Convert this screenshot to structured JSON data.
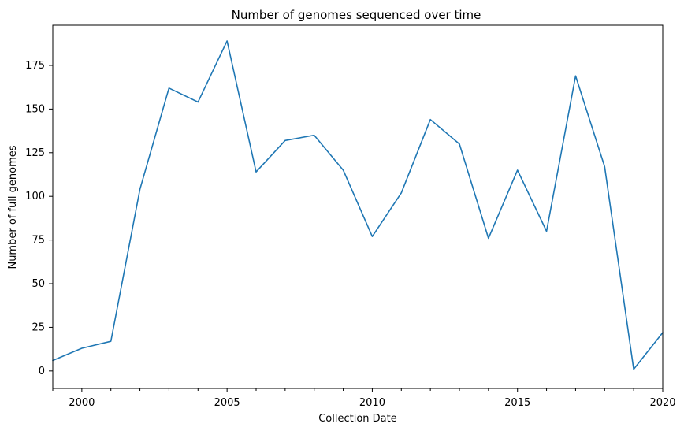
{
  "chart_data": {
    "type": "line",
    "title": "Number of genomes sequenced over time",
    "xlabel": "Collection Date",
    "ylabel": "Number of full genomes",
    "xlim": [
      1999,
      2020
    ],
    "ylim": [
      -10,
      198
    ],
    "x_ticks": [
      2000,
      2005,
      2010,
      2015,
      2020
    ],
    "y_ticks": [
      0,
      25,
      50,
      75,
      100,
      125,
      150,
      175
    ],
    "grid": false,
    "legend": "none",
    "line_color": "#1f77b4",
    "series": [
      {
        "x": [
          1999,
          2000,
          2001,
          2002,
          2003,
          2004,
          2005,
          2006,
          2007,
          2008,
          2009,
          2010,
          2011,
          2012,
          2013,
          2014,
          2015,
          2016,
          2017,
          2018,
          2019,
          2020
        ],
        "values": [
          6,
          13,
          17,
          104,
          162,
          154,
          189,
          114,
          132,
          135,
          115,
          77,
          102,
          144,
          130,
          76,
          115,
          80,
          169,
          117,
          1,
          22
        ]
      }
    ]
  }
}
